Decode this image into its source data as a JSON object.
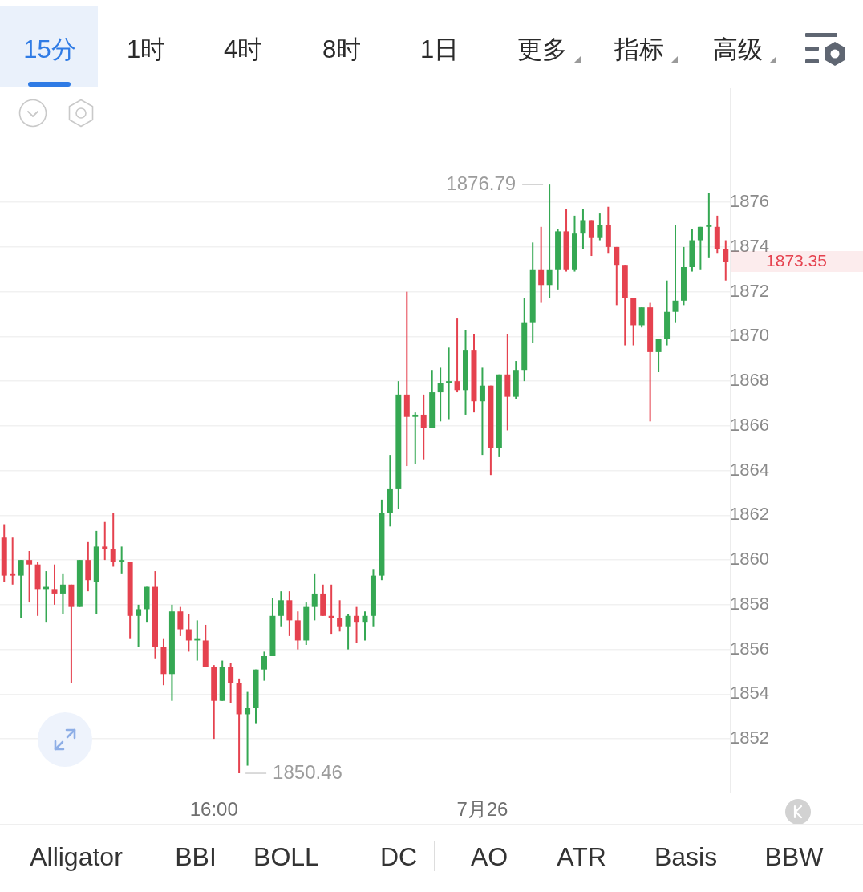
{
  "chart_data": {
    "type": "candlestick",
    "categories": [
      null,
      null,
      null,
      null,
      null,
      null,
      null,
      null,
      null,
      null,
      null,
      null,
      null,
      null,
      null,
      null,
      null,
      null,
      null,
      null,
      null,
      null,
      null,
      null,
      null,
      "16:00",
      null,
      null,
      null,
      null,
      null,
      null,
      null,
      null,
      null,
      null,
      null,
      null,
      null,
      null,
      null,
      null,
      null,
      null,
      null,
      null,
      null,
      null,
      null,
      null,
      null,
      null,
      null,
      null,
      null,
      null,
      null,
      "7月26",
      null,
      null,
      null,
      null,
      null,
      null,
      null,
      null,
      null,
      null,
      null,
      null,
      null,
      null,
      null,
      null,
      null,
      null,
      null,
      null,
      null,
      null,
      null,
      null,
      null,
      null,
      null,
      null,
      null
    ],
    "ohlc": [
      [
        1861.0,
        1861.6,
        1859.0,
        1859.3
      ],
      [
        1859.4,
        1861.0,
        1858.9,
        1859.3
      ],
      [
        1859.3,
        1860.0,
        1857.4,
        1860.0
      ],
      [
        1860.0,
        1860.4,
        1858.1,
        1859.8
      ],
      [
        1859.8,
        1859.9,
        1857.5,
        1858.7
      ],
      [
        1858.7,
        1859.5,
        1857.2,
        1858.8
      ],
      [
        1858.7,
        1859.8,
        1858.0,
        1858.5
      ],
      [
        1858.5,
        1859.4,
        1857.6,
        1858.9
      ],
      [
        1858.9,
        1858.9,
        1854.5,
        1857.9
      ],
      [
        1857.9,
        1860.0,
        1857.9,
        1860.0
      ],
      [
        1860.0,
        1860.8,
        1858.6,
        1859.1
      ],
      [
        1859.0,
        1861.3,
        1857.6,
        1860.6
      ],
      [
        1860.6,
        1861.7,
        1860.0,
        1860.5
      ],
      [
        1860.5,
        1862.1,
        1859.7,
        1859.9
      ],
      [
        1859.9,
        1860.6,
        1859.4,
        1860.0
      ],
      [
        1859.9,
        1859.9,
        1856.5,
        1857.5
      ],
      [
        1857.5,
        1858.0,
        1856.1,
        1857.8
      ],
      [
        1857.8,
        1858.8,
        1857.2,
        1858.8
      ],
      [
        1858.8,
        1859.5,
        1855.6,
        1856.1
      ],
      [
        1856.1,
        1856.5,
        1854.4,
        1854.9
      ],
      [
        1854.9,
        1858.0,
        1853.7,
        1857.7
      ],
      [
        1857.7,
        1857.9,
        1856.6,
        1856.9
      ],
      [
        1856.9,
        1857.6,
        1855.9,
        1856.4
      ],
      [
        1856.4,
        1857.3,
        1855.5,
        1856.5
      ],
      [
        1856.4,
        1857.1,
        1855.2,
        1855.2
      ],
      [
        1855.2,
        1855.3,
        1852.0,
        1853.7
      ],
      [
        1853.7,
        1855.5,
        1853.7,
        1855.2
      ],
      [
        1855.2,
        1855.4,
        1853.6,
        1854.5
      ],
      [
        1854.5,
        1854.7,
        1850.46,
        1853.1
      ],
      [
        1853.1,
        1854.1,
        1850.8,
        1853.4
      ],
      [
        1853.4,
        1855.1,
        1852.7,
        1855.1
      ],
      [
        1855.1,
        1855.9,
        1854.6,
        1855.7
      ],
      [
        1855.7,
        1858.3,
        1855.7,
        1857.5
      ],
      [
        1857.5,
        1858.6,
        1857.0,
        1858.2
      ],
      [
        1858.2,
        1858.6,
        1856.6,
        1857.3
      ],
      [
        1857.3,
        1857.7,
        1856.0,
        1856.4
      ],
      [
        1856.4,
        1858.1,
        1856.2,
        1857.9
      ],
      [
        1857.9,
        1859.4,
        1857.3,
        1858.5
      ],
      [
        1858.5,
        1858.9,
        1857.5,
        1857.5
      ],
      [
        1857.5,
        1858.9,
        1856.7,
        1857.4
      ],
      [
        1857.4,
        1858.2,
        1856.8,
        1857.0
      ],
      [
        1857.0,
        1857.6,
        1856.0,
        1857.5
      ],
      [
        1857.5,
        1857.9,
        1856.3,
        1857.2
      ],
      [
        1857.2,
        1857.7,
        1856.4,
        1857.5
      ],
      [
        1857.5,
        1859.6,
        1857.0,
        1859.3
      ],
      [
        1859.3,
        1862.7,
        1859.1,
        1862.1
      ],
      [
        1862.1,
        1864.7,
        1861.5,
        1863.2
      ],
      [
        1863.2,
        1868.0,
        1862.3,
        1867.4
      ],
      [
        1867.4,
        1872.0,
        1864.2,
        1866.4
      ],
      [
        1866.4,
        1866.6,
        1864.3,
        1866.5
      ],
      [
        1866.5,
        1867.4,
        1864.5,
        1865.9
      ],
      [
        1865.9,
        1868.5,
        1865.9,
        1867.5
      ],
      [
        1867.5,
        1868.6,
        1866.2,
        1867.9
      ],
      [
        1867.9,
        1869.5,
        1866.3,
        1868.0
      ],
      [
        1868.0,
        1870.8,
        1867.5,
        1867.6
      ],
      [
        1867.6,
        1870.3,
        1866.5,
        1869.4
      ],
      [
        1869.4,
        1870.1,
        1866.6,
        1867.1
      ],
      [
        1867.1,
        1868.6,
        1864.7,
        1867.8
      ],
      [
        1867.8,
        1867.8,
        1863.8,
        1865.0
      ],
      [
        1865.0,
        1868.3,
        1864.6,
        1868.3
      ],
      [
        1868.3,
        1870.1,
        1865.8,
        1867.3
      ],
      [
        1867.3,
        1868.9,
        1867.2,
        1868.5
      ],
      [
        1868.5,
        1871.7,
        1868.0,
        1870.6
      ],
      [
        1870.6,
        1874.2,
        1869.7,
        1873.0
      ],
      [
        1873.0,
        1874.9,
        1871.5,
        1872.3
      ],
      [
        1872.3,
        1876.79,
        1871.7,
        1873.0
      ],
      [
        1873.0,
        1874.8,
        1872.1,
        1874.7
      ],
      [
        1874.7,
        1875.7,
        1872.9,
        1873.0
      ],
      [
        1873.0,
        1875.4,
        1872.9,
        1874.6
      ],
      [
        1874.6,
        1875.7,
        1873.9,
        1875.2
      ],
      [
        1875.2,
        1875.2,
        1873.6,
        1874.4
      ],
      [
        1874.4,
        1875.5,
        1874.3,
        1875.0
      ],
      [
        1875.0,
        1875.8,
        1873.7,
        1874.0
      ],
      [
        1874.0,
        1874.0,
        1871.4,
        1873.2
      ],
      [
        1873.2,
        1873.2,
        1869.6,
        1871.7
      ],
      [
        1871.7,
        1871.7,
        1869.6,
        1870.5
      ],
      [
        1870.5,
        1871.3,
        1870.4,
        1871.3
      ],
      [
        1871.3,
        1871.5,
        1866.2,
        1869.3
      ],
      [
        1869.3,
        1869.9,
        1868.4,
        1869.9
      ],
      [
        1869.9,
        1872.5,
        1869.6,
        1871.1
      ],
      [
        1871.1,
        1875.0,
        1870.6,
        1871.6
      ],
      [
        1871.6,
        1874.0,
        1871.4,
        1873.1
      ],
      [
        1873.1,
        1874.8,
        1872.9,
        1874.3
      ],
      [
        1874.3,
        1874.9,
        1873.0,
        1874.9
      ],
      [
        1874.9,
        1876.4,
        1873.5,
        1875.0
      ],
      [
        1874.9,
        1875.4,
        1873.7,
        1873.9
      ],
      [
        1873.9,
        1874.3,
        1872.5,
        1873.35
      ]
    ],
    "colors": [
      "#e5424f",
      "#e5424f",
      "#35a853",
      "#e5424f",
      "#e5424f",
      "#35a853",
      "#e5424f",
      "#35a853",
      "#e5424f",
      "#35a853",
      "#e5424f",
      "#35a853",
      "#e5424f",
      "#e5424f",
      "#35a853",
      "#e5424f",
      "#35a853",
      "#35a853",
      "#e5424f",
      "#e5424f",
      "#35a853",
      "#e5424f",
      "#e5424f",
      "#35a853",
      "#e5424f",
      "#e5424f",
      "#35a853",
      "#e5424f",
      "#e5424f",
      "#35a853",
      "#35a853",
      "#35a853",
      "#35a853",
      "#35a853",
      "#e5424f",
      "#e5424f",
      "#35a853",
      "#35a853",
      "#e5424f",
      "#e5424f",
      "#e5424f",
      "#35a853",
      "#e5424f",
      "#35a853",
      "#35a853",
      "#35a853",
      "#35a853",
      "#35a853",
      "#e5424f",
      "#35a853",
      "#e5424f",
      "#35a853",
      "#35a853",
      "#35a853",
      "#e5424f",
      "#35a853",
      "#e5424f",
      "#35a853",
      "#e5424f",
      "#35a853",
      "#e5424f",
      "#35a853",
      "#35a853",
      "#35a853",
      "#e5424f",
      "#35a853",
      "#35a853",
      "#e5424f",
      "#35a853",
      "#35a853",
      "#e5424f",
      "#35a853",
      "#e5424f",
      "#e5424f",
      "#e5424f",
      "#e5424f",
      "#35a853",
      "#e5424f",
      "#35a853",
      "#35a853",
      "#35a853",
      "#35a853",
      "#35a853",
      "#35a853",
      "#35a853",
      "#e5424f",
      "#e5424f"
    ],
    "ylim": [
      1849.6,
      1881.1
    ],
    "yticks": [
      1852,
      1854,
      1856,
      1858,
      1860,
      1862,
      1864,
      1866,
      1868,
      1870,
      1872,
      1874,
      1876
    ],
    "grid": "y",
    "annotations": [
      "15分",
      "1时",
      "4时",
      "8时",
      "1日",
      "更多",
      "指标",
      "高级",
      "Alligator",
      "BBI",
      "BOLL",
      "DC",
      "AO",
      "ATR",
      "Basis",
      "BBW",
      "1876.79",
      "1850.46",
      "1873.35"
    ]
  }
}
